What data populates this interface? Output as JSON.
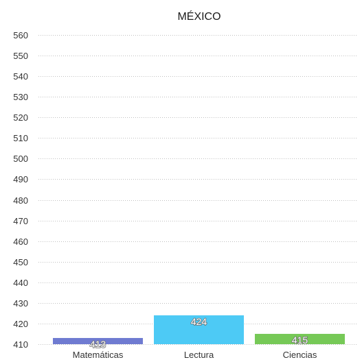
{
  "chart_data": {
    "type": "bar",
    "title": "MÉXICO",
    "xlabel": "",
    "ylabel": "",
    "categories": [
      "Matemáticas",
      "Lectura",
      "Ciencias"
    ],
    "values": [
      413,
      424,
      415
    ],
    "data_labels": [
      "413",
      "424",
      "415"
    ],
    "colors": [
      "#6f7bd1",
      "#4dcaf5",
      "#76c957"
    ],
    "ylim": [
      410,
      560
    ],
    "yticks": [
      410,
      420,
      430,
      440,
      450,
      460,
      470,
      480,
      490,
      500,
      510,
      520,
      530,
      540,
      550,
      560
    ],
    "ytick_labels": [
      "410",
      "420",
      "430",
      "440",
      "450",
      "460",
      "470",
      "480",
      "490",
      "500",
      "510",
      "520",
      "530",
      "540",
      "550",
      "560"
    ],
    "grid": true,
    "legend": "none"
  }
}
